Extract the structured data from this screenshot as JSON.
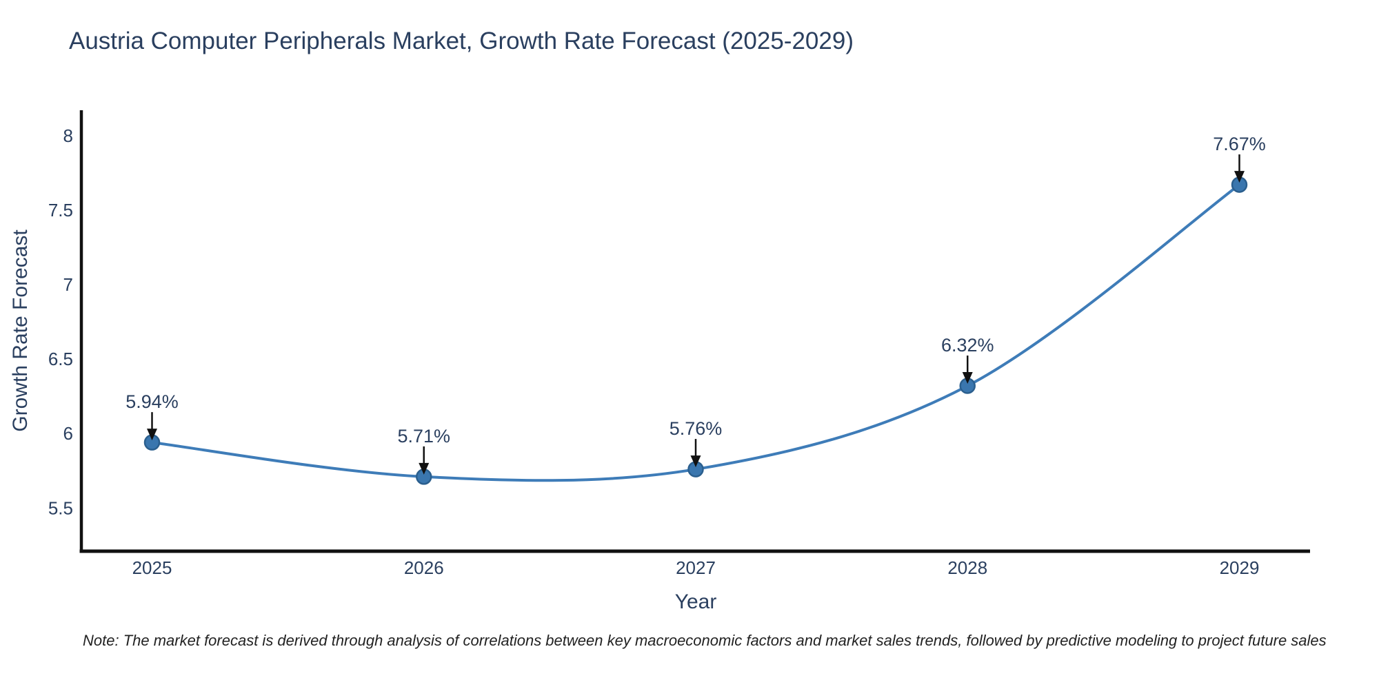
{
  "page": {
    "note": "Note: The market forecast is derived through analysis of correlations between key macroeconomic factors and market sales trends, followed by predictive modeling to project future sales"
  },
  "chart_data": {
    "type": "line",
    "title": "Austria Computer Peripherals Market, Growth Rate Forecast (2025-2029)",
    "x": [
      2025,
      2026,
      2027,
      2028,
      2029
    ],
    "series": [
      {
        "name": "Growth Rate Forecast",
        "values": [
          5.94,
          5.71,
          5.76,
          6.32,
          7.67
        ]
      }
    ],
    "point_labels": [
      "5.94%",
      "5.71%",
      "5.76%",
      "6.32%",
      "7.67%"
    ],
    "xlabel": "Year",
    "ylabel": "Growth Rate Forecast",
    "xtick_labels": [
      "2025",
      "2026",
      "2027",
      "2028",
      "2029"
    ],
    "ytick_labels": [
      "5.5",
      "6",
      "6.5",
      "7",
      "7.5",
      "8"
    ],
    "yticks": [
      5.5,
      6,
      6.5,
      7,
      7.5,
      8
    ],
    "ylim": [
      5.21,
      8.17
    ],
    "xlim": [
      2024.74,
      2029.26
    ],
    "line_shape": "spline",
    "grid": false,
    "legend": "none",
    "colors": {
      "line": "#3e7cb8",
      "marker_fill": "#3a76ae",
      "marker_edge": "#2b5f8e",
      "arrow": "#111111",
      "axis_line": "#111111",
      "text": "#2a3f5f",
      "note_text": "#222222",
      "background": "#ffffff"
    }
  }
}
